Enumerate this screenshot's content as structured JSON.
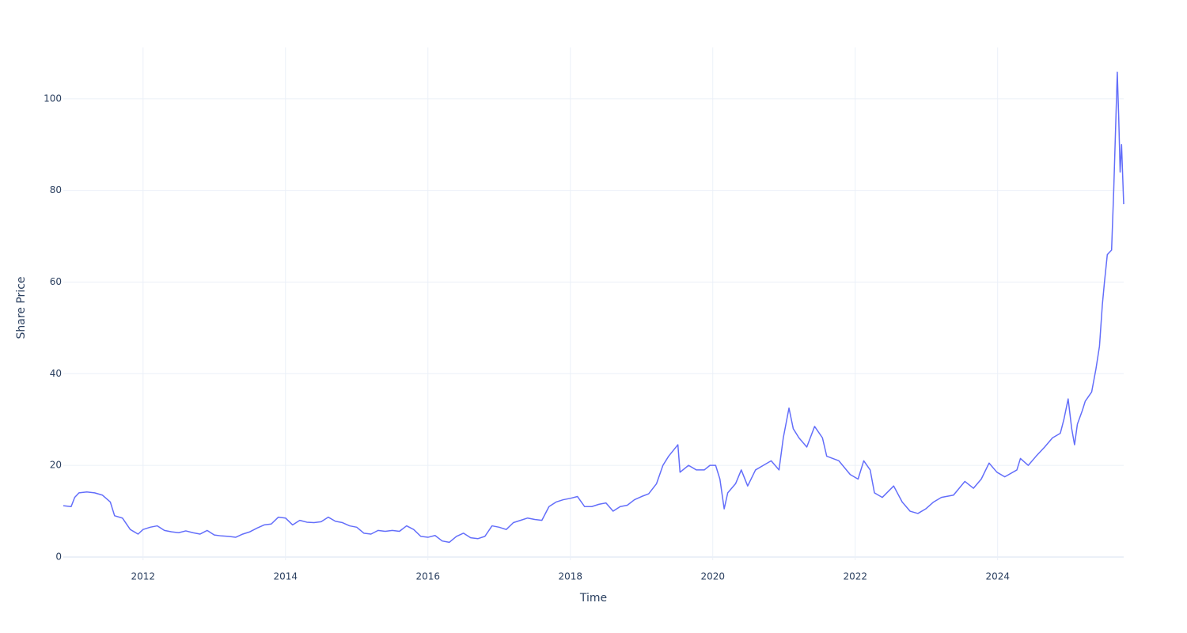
{
  "chart_data": {
    "type": "line",
    "x_label": "Time",
    "y_label": "Share Price",
    "color": "#636efa",
    "grid": true,
    "xlim": [
      2010.88,
      2025.77
    ],
    "ylim": [
      -0.7,
      111.2
    ],
    "xticks": [
      2012,
      2014,
      2016,
      2018,
      2020,
      2022,
      2024
    ],
    "yticks": [
      0,
      20,
      40,
      60,
      80,
      100
    ],
    "x": [
      2010.88,
      2010.99,
      2011.04,
      2011.1,
      2011.21,
      2011.32,
      2011.43,
      2011.54,
      2011.6,
      2011.71,
      2011.82,
      2011.93,
      2012.0,
      2012.1,
      2012.2,
      2012.3,
      2012.4,
      2012.5,
      2012.6,
      2012.7,
      2012.8,
      2012.9,
      2013.0,
      2013.1,
      2013.2,
      2013.3,
      2013.4,
      2013.5,
      2013.6,
      2013.7,
      2013.8,
      2013.9,
      2014.0,
      2014.1,
      2014.2,
      2014.3,
      2014.4,
      2014.5,
      2014.6,
      2014.7,
      2014.8,
      2014.9,
      2015.0,
      2015.1,
      2015.2,
      2015.3,
      2015.4,
      2015.5,
      2015.6,
      2015.7,
      2015.8,
      2015.9,
      2016.0,
      2016.1,
      2016.2,
      2016.3,
      2016.4,
      2016.5,
      2016.6,
      2016.7,
      2016.8,
      2016.9,
      2017.0,
      2017.1,
      2017.2,
      2017.3,
      2017.4,
      2017.5,
      2017.6,
      2017.7,
      2017.8,
      2017.9,
      2018.0,
      2018.1,
      2018.2,
      2018.3,
      2018.4,
      2018.5,
      2018.6,
      2018.7,
      2018.8,
      2018.9,
      2019.0,
      2019.1,
      2019.21,
      2019.3,
      2019.38,
      2019.51,
      2019.54,
      2019.66,
      2019.77,
      2019.88,
      2019.96,
      2020.04,
      2020.1,
      2020.16,
      2020.21,
      2020.32,
      2020.4,
      2020.49,
      2020.6,
      2020.71,
      2020.82,
      2020.93,
      2020.99,
      2021.07,
      2021.13,
      2021.21,
      2021.32,
      2021.43,
      2021.54,
      2021.6,
      2021.77,
      2021.93,
      2022.04,
      2022.12,
      2022.21,
      2022.27,
      2022.38,
      2022.54,
      2022.66,
      2022.77,
      2022.88,
      2022.99,
      2023.1,
      2023.21,
      2023.38,
      2023.54,
      2023.66,
      2023.77,
      2023.88,
      2023.99,
      2024.1,
      2024.27,
      2024.32,
      2024.43,
      2024.54,
      2024.66,
      2024.77,
      2024.88,
      2024.93,
      2024.99,
      2025.04,
      2025.08,
      2025.12,
      2025.19,
      2025.23,
      2025.32,
      2025.38,
      2025.43,
      2025.47,
      2025.5,
      2025.54,
      2025.6,
      2025.63,
      2025.68,
      2025.7,
      2025.72,
      2025.74,
      2025.77
    ],
    "values": [
      11.2,
      11,
      13,
      14,
      14.2,
      14,
      13.5,
      12,
      9,
      8.5,
      6,
      5,
      6,
      6.5,
      6.8,
      5.8,
      5.5,
      5.3,
      5.7,
      5.3,
      5,
      5.8,
      4.8,
      4.6,
      4.5,
      4.3,
      5,
      5.5,
      6.3,
      7,
      7.2,
      8.7,
      8.5,
      7,
      8,
      7.6,
      7.5,
      7.7,
      8.7,
      7.8,
      7.5,
      6.8,
      6.5,
      5.2,
      5,
      5.8,
      5.6,
      5.8,
      5.6,
      6.8,
      6,
      4.5,
      4.3,
      4.7,
      3.5,
      3.2,
      4.5,
      5.2,
      4.2,
      4,
      4.5,
      6.8,
      6.5,
      6,
      7.5,
      8,
      8.5,
      8.2,
      8,
      11,
      12,
      12.5,
      12.8,
      13.2,
      11,
      11,
      11.5,
      11.8,
      10,
      11,
      11.3,
      12.5,
      13.2,
      13.8,
      16,
      20,
      22,
      24.5,
      18.5,
      20,
      19,
      19,
      20,
      20,
      17,
      10.5,
      14,
      16,
      19,
      15.5,
      19,
      20,
      21,
      19,
      26,
      32.5,
      28,
      26,
      24,
      28.5,
      26,
      22,
      21,
      18,
      17,
      21,
      19,
      14,
      13,
      15.5,
      12,
      10,
      9.5,
      10.5,
      12,
      13,
      13.5,
      16.5,
      15,
      17,
      20.5,
      18.5,
      17.5,
      19,
      21.5,
      20,
      22,
      24,
      26,
      27,
      30,
      34.5,
      28,
      24.5,
      29,
      32,
      34,
      36,
      41,
      46,
      55,
      60,
      66,
      67,
      80,
      105.8,
      96,
      84,
      90,
      77
    ]
  }
}
